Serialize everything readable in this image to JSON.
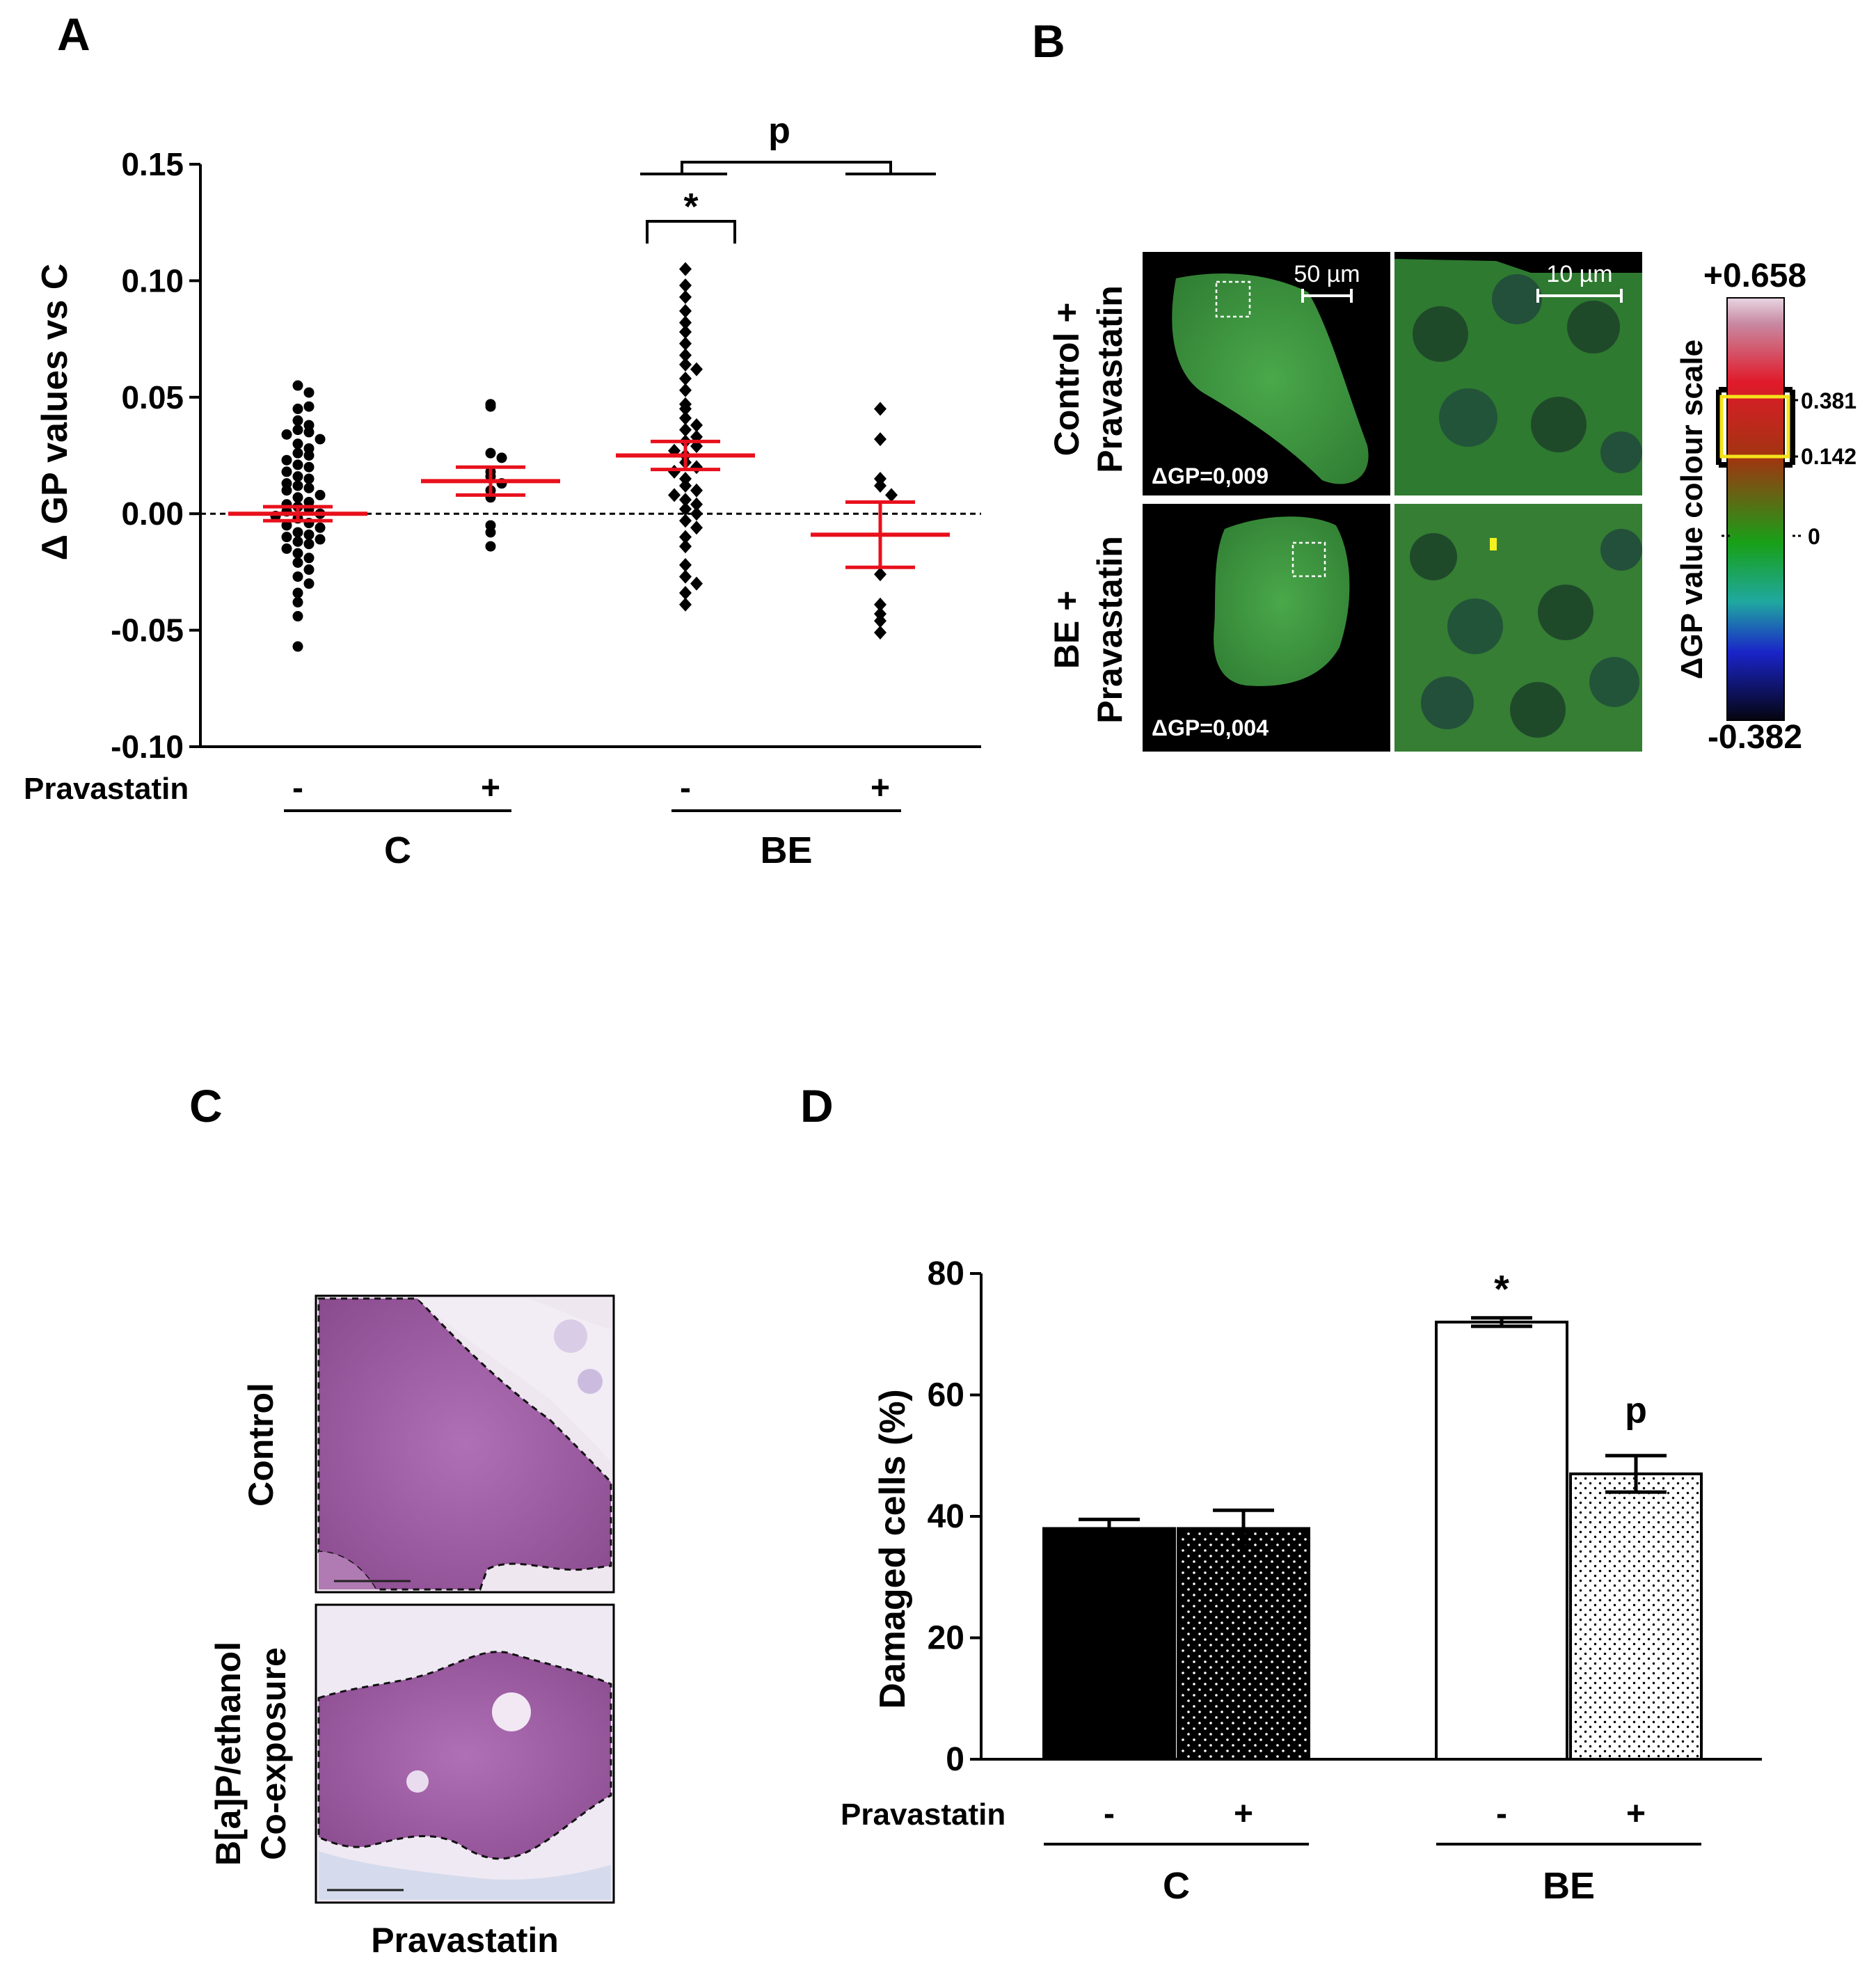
{
  "panels": {
    "A": "A",
    "B": "B",
    "C": "C",
    "D": "D"
  },
  "colors": {
    "mean_bar": "#e8101c",
    "points": "#000000",
    "black_fill": "#000000",
    "micro_bg": "#000000",
    "micro_green": "#3f9a3a",
    "he_purple": "#9a4f9c",
    "highlight_box": "#f5e21a"
  },
  "chart_data": [
    {
      "panel": "A",
      "type": "scatter",
      "ylabel": "Δ GP values vs C",
      "ylim": [
        -0.1,
        0.15
      ],
      "yticks": [
        "0.15",
        "0.10",
        "0.05",
        "0.00",
        "-0.05",
        "-0.10"
      ],
      "ytick_values": [
        0.15,
        0.1,
        0.05,
        0.0,
        -0.05,
        -0.1
      ],
      "row_label": "Pravastatin",
      "categories": [
        "-",
        "+",
        "-",
        "+"
      ],
      "groups": [
        "C",
        "BE"
      ],
      "group_members": [
        [
          0,
          1
        ],
        [
          2,
          3
        ]
      ],
      "reference_line": 0.0,
      "series": [
        {
          "marker": "circle",
          "values": [
            0.055,
            0.052,
            0.045,
            0.046,
            0.04,
            0.038,
            0.036,
            0.035,
            0.034,
            0.032,
            0.03,
            0.028,
            0.026,
            0.025,
            0.023,
            0.021,
            0.02,
            0.018,
            0.016,
            0.015,
            0.013,
            0.012,
            0.011,
            0.01,
            0.008,
            0.007,
            0.005,
            0.004,
            0.003,
            0.002,
            0.001,
            0.0,
            -0.001,
            -0.002,
            -0.004,
            -0.005,
            -0.006,
            -0.008,
            -0.009,
            -0.01,
            -0.011,
            -0.012,
            -0.013,
            -0.015,
            -0.017,
            -0.019,
            -0.021,
            -0.024,
            -0.027,
            -0.03,
            -0.034,
            -0.038,
            -0.044,
            -0.057
          ],
          "mean": 0.0,
          "sem_upper": 0.003,
          "sem_lower": -0.003
        },
        {
          "marker": "circle",
          "values": [
            0.047,
            0.046,
            0.026,
            0.024,
            0.018,
            0.016,
            0.013,
            0.01,
            0.007,
            -0.005,
            -0.008,
            -0.014
          ],
          "mean": 0.014,
          "sem_upper": 0.02,
          "sem_lower": 0.008
        },
        {
          "marker": "diamond",
          "values": [
            0.105,
            0.098,
            0.093,
            0.087,
            0.082,
            0.078,
            0.073,
            0.068,
            0.064,
            0.062,
            0.058,
            0.053,
            0.047,
            0.045,
            0.041,
            0.038,
            0.036,
            0.033,
            0.031,
            0.029,
            0.027,
            0.025,
            0.022,
            0.02,
            0.018,
            0.015,
            0.012,
            0.01,
            0.008,
            0.006,
            0.004,
            0.002,
            0.0,
            -0.003,
            -0.006,
            -0.01,
            -0.014,
            -0.022,
            -0.027,
            -0.03,
            -0.034,
            -0.039
          ],
          "mean": 0.025,
          "sem_upper": 0.031,
          "sem_lower": 0.019
        },
        {
          "marker": "diamond",
          "values": [
            0.045,
            0.032,
            0.015,
            0.012,
            0.008,
            -0.026,
            -0.039,
            -0.043,
            -0.046,
            -0.051
          ],
          "mean": -0.009,
          "sem_upper": 0.005,
          "sem_lower": -0.023
        }
      ],
      "annotations": [
        "*",
        "p"
      ]
    },
    {
      "panel": "D",
      "type": "bar",
      "ylabel": "Damaged cells (%)",
      "ylim": [
        0,
        80
      ],
      "yticks": [
        "0",
        "20",
        "40",
        "60",
        "80"
      ],
      "ytick_values": [
        0,
        20,
        40,
        60,
        80
      ],
      "row_label": "Pravastatin",
      "categories": [
        "-",
        "+",
        "-",
        "+"
      ],
      "groups": [
        "C",
        "BE"
      ],
      "values": [
        38,
        38,
        72,
        47
      ],
      "errors": [
        1.5,
        3,
        0.7,
        3
      ],
      "fills": [
        "solid-black",
        "black-white-dots",
        "white",
        "white-black-dots"
      ],
      "annotations": [
        "*",
        "p"
      ]
    }
  ],
  "panel_b": {
    "row_labels": [
      [
        "Control +",
        "Pravastatin"
      ],
      [
        "BE +",
        "Pravastatin"
      ]
    ],
    "delta_labels": [
      "ΔGP=0,009",
      "ΔGP=0,004"
    ],
    "scale_bars": [
      "50 µm",
      "10 µm"
    ],
    "colour_scale": {
      "title": "ΔGP value colour scale",
      "max": "+0.658",
      "min": "-0.382",
      "ticks": [
        "0.381",
        "0.142",
        "0"
      ]
    }
  },
  "panel_c": {
    "row_labels": [
      [
        "Control"
      ],
      [
        "B[a]P/ethanol",
        "Co-exposure"
      ]
    ],
    "bottom_label": "Pravastatin"
  }
}
